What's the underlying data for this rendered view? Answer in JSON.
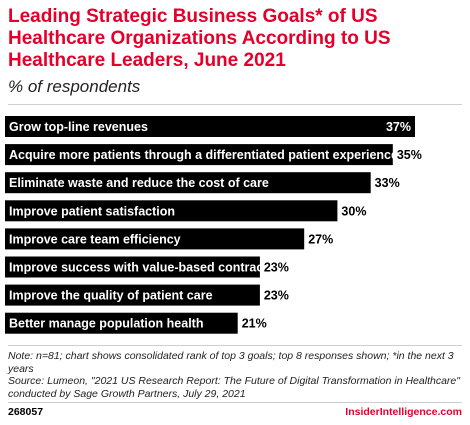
{
  "title": "Leading Strategic Business Goals* of US Healthcare Organizations According to US Healthcare Leaders, June 2021",
  "subtitle": "% of respondents",
  "note_lines": [
    "Note: n=81; chart shows consolidated rank of top 3 goals; top 8 responses shown; *in the next 3 years",
    "Source: Lumeon, \"2021 US Research Report: The Future of Digital Transformation in Healthcare\" conducted by Sage Growth Partners, July 29, 2021"
  ],
  "footer": {
    "id": "268057",
    "brand": "InsiderIntelligence.com"
  },
  "colors": {
    "bar": "#000000",
    "accent": "#e4002b",
    "label": "#ffffff"
  },
  "chart_data": {
    "type": "bar",
    "orientation": "horizontal",
    "title": "Leading Strategic Business Goals* of US Healthcare Organizations According to US Healthcare Leaders, June 2021",
    "subtitle": "% of respondents",
    "categories": [
      "Grow top-line revenues",
      "Acquire more patients through a differentiated patient experience",
      "Eliminate waste and reduce the cost of care",
      "Improve patient satisfaction",
      "Improve care team efficiency",
      "Improve success with value-based contracts",
      "Improve the quality of patient care",
      "Better manage population health"
    ],
    "values": [
      37,
      35,
      33,
      30,
      27,
      23,
      23,
      21
    ],
    "value_labels": [
      "37%",
      "35%",
      "33%",
      "30%",
      "27%",
      "23%",
      "23%",
      "21%"
    ],
    "xlim": [
      0,
      37
    ],
    "grid": false,
    "legend": "none"
  }
}
